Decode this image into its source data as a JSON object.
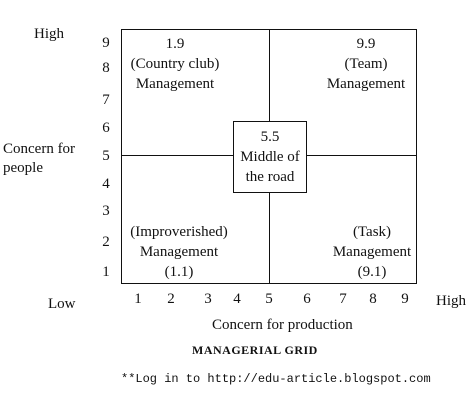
{
  "y_axis": {
    "high_label": "High",
    "low_label": "Low",
    "title_line1": "Concern for",
    "title_line2": "people",
    "ticks": [
      "9",
      "8",
      "7",
      "6",
      "5",
      "4",
      "3",
      "2",
      "1"
    ]
  },
  "x_axis": {
    "high_label": "High",
    "title": "Concern for production",
    "ticks": [
      "1",
      "2",
      "3",
      "4",
      "5",
      "6",
      "7",
      "8",
      "9"
    ]
  },
  "quadrants": {
    "top_left": {
      "score": "1.9",
      "line1": "(Country club)",
      "line2": "Management"
    },
    "top_right": {
      "score": "9.9",
      "line1": "(Team)",
      "line2": "Management"
    },
    "bottom_left": {
      "line1": "(Improverished)",
      "line2": "Management",
      "score": "(1.1)"
    },
    "bottom_right": {
      "line1": "(Task)",
      "line2": "Management",
      "score": "(9.1)"
    }
  },
  "center": {
    "score": "5.5",
    "line1": "Middle of",
    "line2": "the road"
  },
  "caption": "MANAGERIAL GRID",
  "footer": "**Log in to http://edu-article.blogspot.com"
}
